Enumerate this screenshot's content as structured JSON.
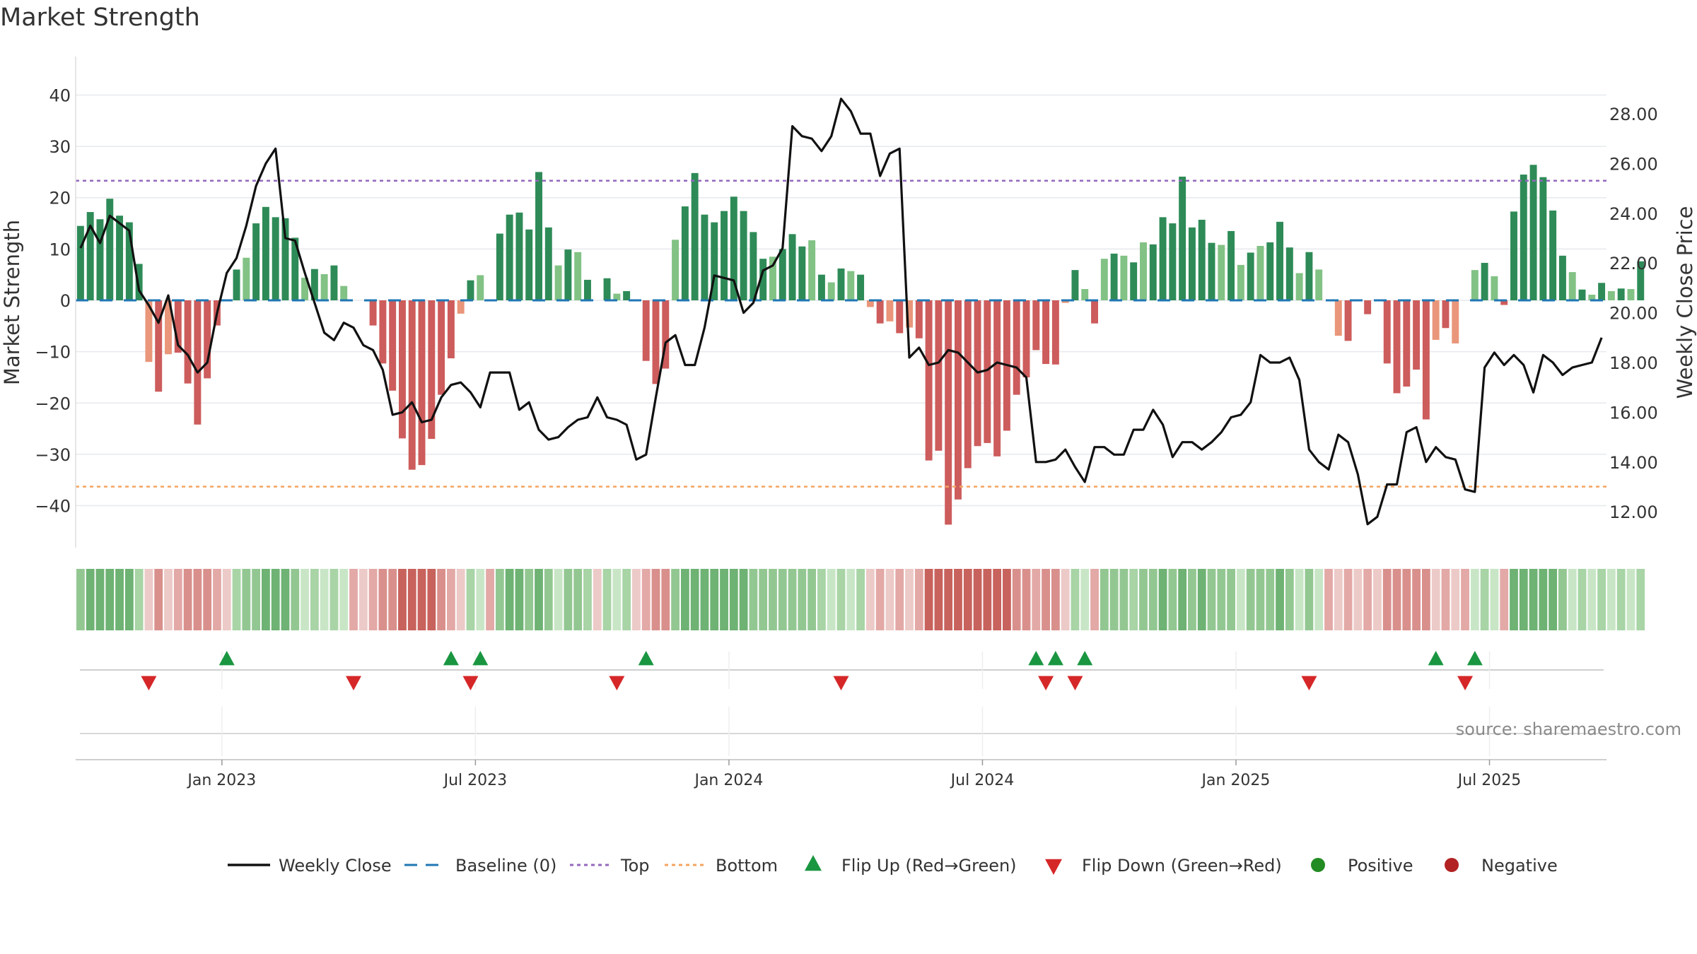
{
  "title": "Market Strength",
  "source": "source: sharemaestro.com",
  "colors": {
    "dark_green": "#2e8b57",
    "light_green": "#82c285",
    "dark_red": "#cd5c5c",
    "light_red": "#e9967a",
    "line": "#111111",
    "baseline": "#1f77b4",
    "top": "#9467bd",
    "bottom": "#f4a460",
    "flip_up": "#1a9641",
    "flip_down": "#d62728",
    "positive": "#228b22",
    "negative": "#b22222",
    "grid": "#e6e9ee",
    "axis_text": "#333333"
  },
  "chart_data": {
    "type": "bar+line",
    "title": "Market Strength",
    "ylabel_left": "Market Strength",
    "ylabel_right": "Weekly Close Price",
    "y_left_ticks": [
      40,
      30,
      20,
      10,
      0,
      -10,
      -20,
      -30,
      -40
    ],
    "y_left_tick_labels": [
      "40",
      "30",
      "20",
      "10",
      "0",
      "−10",
      "−20",
      "−30",
      "−40"
    ],
    "y_left_range": [
      -47.5,
      47.5
    ],
    "y_right_ticks": [
      "28.00",
      "26.00",
      "24.00",
      "22.00",
      "20.00",
      "18.00",
      "16.00",
      "14.00",
      "12.00"
    ],
    "y_right_range": [
      10.7,
      30.3
    ],
    "top_level": 23.3,
    "bottom_level": -36.3,
    "baseline": 0,
    "x_labels": [
      "Jan 2023",
      "Jul 2023",
      "Jan 2024",
      "Jul 2024",
      "Jan 2025",
      "Jul 2025"
    ],
    "x_label_week_index": [
      14.5,
      40.5,
      66.5,
      92.5,
      118.5,
      144.5
    ],
    "week_count": 157,
    "strength": [
      14.5,
      17.2,
      15.8,
      19.8,
      16.5,
      15.2,
      7.1,
      -12,
      -17.8,
      -10.5,
      -10.2,
      -16.2,
      -24.2,
      -15.2,
      -4.9,
      -0.1,
      6,
      8.3,
      15,
      18.2,
      16.2,
      16,
      12.2,
      4.4,
      6.1,
      5.1,
      6.8,
      2.8,
      -0.1,
      -0.1,
      -4.9,
      -12.3,
      -17.6,
      -26.9,
      -33,
      -32.1,
      -27,
      -18.4,
      -11.3,
      -2.6,
      3.9,
      4.9,
      -0.1,
      13,
      16.7,
      17.1,
      13.8,
      25,
      14.2,
      6.8,
      9.9,
      9.4,
      4,
      -0.1,
      4.3,
      1.3,
      1.8,
      -0.1,
      -11.8,
      -16.3,
      -13.3,
      11.8,
      18.3,
      24.8,
      16.7,
      15.2,
      17.4,
      20.2,
      17.4,
      13.3,
      8.1,
      8.5,
      10,
      12.9,
      10.5,
      11.7,
      5,
      3.5,
      6.2,
      5.7,
      5,
      -1.3,
      -4.5,
      -4.1,
      -6.4,
      -5.3,
      -7.4,
      -31.2,
      -29.3,
      -43.7,
      -38.8,
      -32.7,
      -28.4,
      -27.8,
      -30.4,
      -25.4,
      -18.4,
      -15,
      -9.7,
      -12.4,
      -12.5,
      -0.5,
      5.9,
      2.2,
      -4.5,
      8.1,
      9.1,
      8.7,
      7.4,
      11.3,
      10.9,
      16.2,
      15,
      24.1,
      14.2,
      15.7,
      11.2,
      10.8,
      13.5,
      6.9,
      9.3,
      10.6,
      11.3,
      15.3,
      10.3,
      5.3,
      9.4,
      6,
      -0.1,
      -6.9,
      -7.9,
      -0.1,
      -2.7,
      -0.1,
      -12.3,
      -18.1,
      -16.8,
      -13.5,
      -23.2,
      -7.7,
      -5.4,
      -8.4,
      -0.1,
      5.9,
      7.3,
      4.7,
      -0.9,
      17.3,
      24.5,
      26.4,
      24,
      17.5,
      8.7,
      5.5,
      2.1,
      1.1,
      3.4,
      1.8,
      2.3,
      2.2,
      7.6
    ],
    "weekly_close": [
      22.6,
      23.5,
      22.8,
      23.9,
      23.6,
      23.3,
      20.9,
      20.3,
      19.6,
      20.7,
      18.7,
      18.3,
      17.6,
      18.0,
      20.0,
      21.6,
      22.2,
      23.5,
      25.1,
      26.0,
      26.6,
      23.0,
      22.9,
      21.6,
      20.4,
      19.2,
      18.9,
      19.6,
      19.4,
      18.7,
      18.5,
      17.7,
      15.9,
      16.0,
      16.4,
      15.6,
      15.7,
      16.6,
      17.1,
      17.2,
      16.8,
      16.2,
      17.6,
      17.6,
      17.6,
      16.1,
      16.4,
      15.3,
      14.9,
      15.0,
      15.4,
      15.7,
      15.8,
      16.6,
      15.8,
      15.7,
      15.5,
      14.1,
      14.3,
      16.6,
      18.8,
      19.1,
      17.9,
      17.9,
      19.4,
      21.5,
      21.4,
      21.3,
      20.0,
      20.4,
      21.7,
      21.9,
      22.6,
      27.5,
      27.1,
      27.0,
      26.5,
      27.1,
      28.6,
      28.1,
      27.2,
      27.2,
      25.5,
      26.4,
      26.6,
      18.2,
      18.6,
      17.9,
      18.0,
      18.5,
      18.4,
      18.0,
      17.6,
      17.7,
      18.0,
      17.9,
      17.8,
      17.4,
      14.0,
      14.0,
      14.1,
      14.5,
      13.8,
      13.2,
      14.6,
      14.6,
      14.3,
      14.3,
      15.3,
      15.3,
      16.1,
      15.5,
      14.2,
      14.8,
      14.8,
      14.5,
      14.8,
      15.2,
      15.8,
      15.9,
      16.4,
      18.3,
      18.0,
      18.0,
      18.2,
      17.3,
      14.5,
      14.0,
      13.7,
      15.1,
      14.8,
      13.5,
      11.5,
      11.8,
      13.1,
      13.1,
      15.2,
      15.4,
      14.0,
      14.6,
      14.2,
      14.1,
      12.9,
      12.8,
      17.8,
      18.4,
      17.9,
      18.3,
      17.9,
      16.8,
      18.3,
      18.0,
      17.5,
      17.8,
      17.9,
      18.0,
      19.0
    ],
    "regime_strip": {
      "description": "weekly coloured regime strip below the main panel (green = positive, red = negative)",
      "shades": [
        "#a8d4a6",
        "#c8e6c6",
        "#93c792",
        "#6eb274",
        "#e3a9a6",
        "#eccac7",
        "#d9908c",
        "#c8625d"
      ]
    },
    "flip_up_weeks": [
      15,
      38,
      41,
      58,
      98,
      100,
      103,
      139,
      143
    ],
    "flip_down_weeks": [
      7,
      28,
      40,
      55,
      78,
      99,
      102,
      126,
      142
    ],
    "legend": [
      "Weekly Close",
      "Baseline (0)",
      "Top",
      "Bottom",
      "Flip Up (Red→Green)",
      "Flip Down (Green→Red)",
      "Positive",
      "Negative"
    ]
  }
}
